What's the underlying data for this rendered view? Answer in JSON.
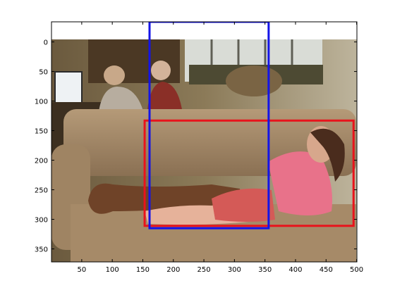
{
  "figure": {
    "x_ticks": [
      "50",
      "100",
      "150",
      "200",
      "250",
      "300",
      "350",
      "400",
      "450",
      "500"
    ],
    "y_ticks": [
      "0",
      "50",
      "100",
      "150",
      "200",
      "250",
      "300",
      "350"
    ],
    "x_tick_values": [
      50,
      100,
      150,
      200,
      250,
      300,
      350,
      400,
      450,
      500
    ],
    "y_tick_values": [
      0,
      50,
      100,
      150,
      200,
      250,
      300,
      350
    ],
    "x_range": [
      0.5,
      500.5
    ],
    "y_range": [
      -34,
      372
    ],
    "photo_extent": {
      "x": [
        0.5,
        500.5
      ],
      "y": [
        0.5,
        375.5
      ]
    }
  },
  "boxes": [
    {
      "name": "red-bounding-box",
      "color": "#e8141c",
      "x1": 153,
      "y1": 133,
      "x2": 495,
      "y2": 311
    },
    {
      "name": "blue-bounding-box",
      "color": "#1414e8",
      "x1": 161,
      "y1": -34,
      "x2": 356,
      "y2": 315
    }
  ]
}
